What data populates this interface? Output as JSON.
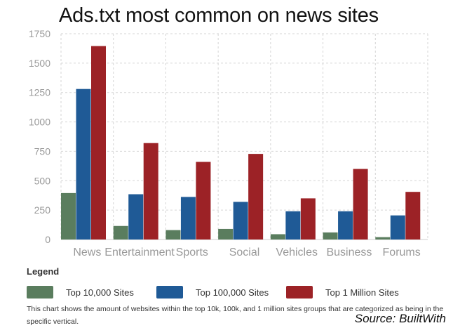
{
  "chart_data": {
    "type": "bar",
    "title": "Ads.txt most common on news sites",
    "categories": [
      "News",
      "Entertainment",
      "Sports",
      "Social",
      "Vehicles",
      "Business",
      "Forums"
    ],
    "series": [
      {
        "name": "Top 10,000 Sites",
        "color": "#5a7d5e",
        "values": [
          395,
          115,
          80,
          90,
          45,
          60,
          20
        ]
      },
      {
        "name": "Top 100,000 Sites",
        "color": "#1f5a96",
        "values": [
          1280,
          385,
          362,
          320,
          240,
          240,
          205
        ]
      },
      {
        "name": "Top 1 Million Sites",
        "color": "#9c2226",
        "values": [
          1645,
          820,
          660,
          728,
          350,
          600,
          405
        ]
      }
    ],
    "yticks": [
      0,
      250,
      500,
      750,
      1000,
      1250,
      1500,
      1750
    ],
    "ylim": [
      0,
      1750
    ],
    "xlabel": "",
    "ylabel": "",
    "grid": true
  },
  "legend": {
    "heading": "Legend",
    "items": [
      "Top 10,000 Sites",
      "Top 100,000 Sites",
      "Top 1 Million Sites"
    ]
  },
  "description": "This chart shows the amount of websites within the top 10k, 100k, and 1 million sites groups that are categorized as being in the specific vertical.",
  "source": "Source: BuiltWith"
}
